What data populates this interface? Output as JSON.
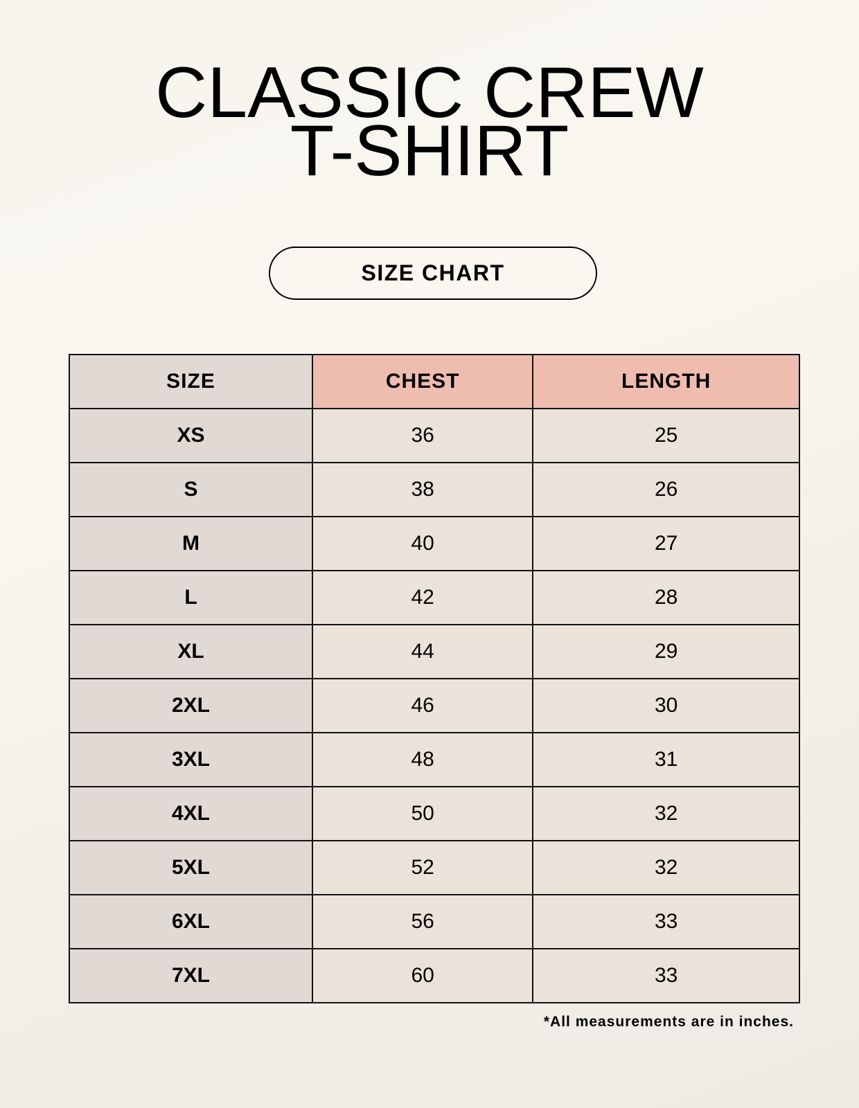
{
  "title_line1": "CLASSIC CREW",
  "title_line2": "T-SHIRT",
  "badge": "SIZE CHART",
  "table": {
    "headers": [
      "SIZE",
      "CHEST",
      "LENGTH"
    ],
    "rows": [
      [
        "XS",
        "36",
        "25"
      ],
      [
        "S",
        "38",
        "26"
      ],
      [
        "M",
        "40",
        "27"
      ],
      [
        "L",
        "42",
        "28"
      ],
      [
        "XL",
        "44",
        "29"
      ],
      [
        "2XL",
        "46",
        "30"
      ],
      [
        "3XL",
        "48",
        "31"
      ],
      [
        "4XL",
        "50",
        "32"
      ],
      [
        "5XL",
        "52",
        "32"
      ],
      [
        "6XL",
        "56",
        "33"
      ],
      [
        "7XL",
        "60",
        "33"
      ]
    ]
  },
  "footnote": "*All measurements are in inches.",
  "colors": {
    "header_accent": "#efbdb0",
    "size_column": "#e1d9d3",
    "cell": "#ebe3d9"
  }
}
